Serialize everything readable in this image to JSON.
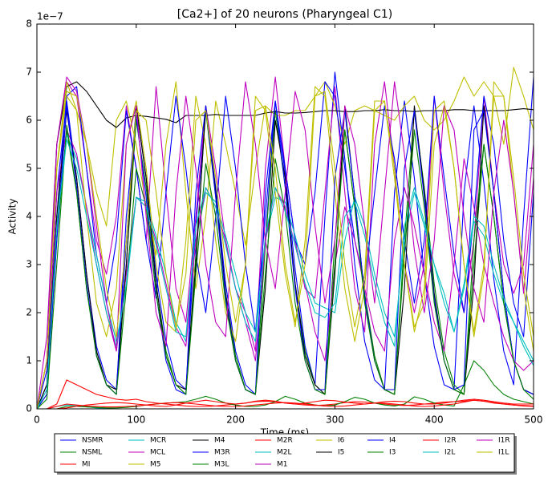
{
  "chart_data": {
    "type": "line",
    "title": "[Ca2+] of 20 neurons (Pharyngeal C1)",
    "x_label": "Time (ms)",
    "y_label": "Activity",
    "y_offset_label": "1e−7",
    "xlim": [
      0,
      500
    ],
    "xticks": [
      0,
      100,
      200,
      300,
      400,
      500
    ],
    "ylim": [
      0,
      8
    ],
    "yticks": [
      0,
      1,
      2,
      3,
      4,
      5,
      6,
      7,
      8
    ],
    "grid": false,
    "legend": "below",
    "x": [
      0,
      10,
      20,
      30,
      40,
      50,
      60,
      70,
      80,
      90,
      100,
      110,
      120,
      130,
      140,
      150,
      160,
      170,
      180,
      190,
      200,
      210,
      220,
      230,
      240,
      250,
      260,
      270,
      280,
      290,
      300,
      310,
      320,
      330,
      340,
      350,
      360,
      370,
      380,
      390,
      400,
      410,
      420,
      430,
      440,
      450,
      460,
      470,
      480,
      490,
      500
    ],
    "series": [
      {
        "name": "NSMR",
        "color": "#0000ff",
        "values": [
          0,
          0.8,
          4.5,
          6.4,
          4.8,
          2.8,
          1.3,
          0.6,
          0.4,
          3.5,
          6.3,
          4.8,
          2.8,
          1.4,
          0.6,
          0.4,
          3.8,
          6.2,
          4.6,
          2.6,
          1.2,
          0.5,
          0.3,
          3.5,
          6.4,
          4.9,
          2.9,
          1.3,
          0.5,
          4.0,
          7.0,
          5.2,
          3.0,
          1.4,
          0.6,
          0.4,
          4.5,
          6.4,
          4.8,
          2.8,
          1.3,
          0.5,
          0.4,
          4.5,
          6.3,
          4.7,
          2.7,
          1.2,
          0.5,
          4.0,
          6.9
        ]
      },
      {
        "name": "NSML",
        "color": "#008000",
        "values": [
          0,
          0.3,
          3.5,
          5.8,
          4.5,
          2.5,
          1.2,
          0.5,
          0.3,
          3,
          6,
          4.6,
          2.6,
          1.2,
          0.5,
          0.3,
          3.2,
          6.2,
          4.4,
          2.4,
          1.1,
          0.4,
          0.3,
          3.4,
          6.2,
          4.6,
          2.6,
          1.2,
          0.5,
          0.3,
          3.5,
          5.8,
          4.2,
          2.4,
          1.1,
          0.4,
          0.3,
          3.5,
          6.2,
          4.6,
          2.6,
          1.2,
          0.5,
          0.3,
          3.0,
          5.5,
          4.0,
          2.2,
          1.0,
          0.4,
          0.3
        ]
      },
      {
        "name": "MI",
        "color": "#ff0000",
        "values": [
          0,
          0,
          0.1,
          0.6,
          0.5,
          0.4,
          0.3,
          0.25,
          0.2,
          0.18,
          0.2,
          0.15,
          0.12,
          0.1,
          0.08,
          0.06,
          0.05,
          0.05,
          0.06,
          0.08,
          0.1,
          0.12,
          0.15,
          0.16,
          0.15,
          0.12,
          0.1,
          0.08,
          0.07,
          0.08,
          0.1,
          0.13,
          0.15,
          0.14,
          0.12,
          0.1,
          0.08,
          0.07,
          0.08,
          0.1,
          0.12,
          0.14,
          0.15,
          0.16,
          0.18,
          0.16,
          0.13,
          0.1,
          0.08,
          0.07,
          0.06
        ]
      },
      {
        "name": "MCR",
        "color": "#00bfbf",
        "values": [
          0,
          0,
          0.05,
          0.08,
          0.07,
          0.04,
          0.02,
          0.01,
          0,
          0,
          0,
          0,
          0,
          0,
          0,
          0,
          0,
          0,
          0,
          0,
          0,
          0,
          0,
          0,
          0,
          0,
          0,
          0,
          0,
          0,
          0,
          0,
          0,
          0,
          0,
          0,
          0,
          0,
          0,
          0,
          0,
          0,
          0,
          0,
          0,
          0,
          0,
          0,
          0,
          0,
          0
        ]
      },
      {
        "name": "MCL",
        "color": "#bf00bf",
        "values": [
          0,
          1.5,
          5.5,
          6.8,
          6.5,
          5,
          3.5,
          2.8,
          4,
          6.3,
          5,
          3.5,
          6.7,
          4.5,
          2.5,
          1.8,
          4,
          6.3,
          5,
          3.5,
          2.5,
          2,
          1.2,
          5,
          6.9,
          5,
          3.5,
          2.5,
          2.3,
          4.5,
          6.7,
          4.5,
          2.5,
          1.6,
          5.5,
          6.8,
          5,
          3,
          2,
          3,
          6.5,
          4.5,
          2.8,
          2,
          3.5,
          6.5,
          4.5,
          3,
          2.4,
          3,
          5.5
        ]
      },
      {
        "name": "M5",
        "color": "#bfbf00",
        "values": [
          0,
          1,
          5,
          6.5,
          6.2,
          5.5,
          4.5,
          3.8,
          6,
          6.4,
          5.5,
          4.2,
          3.2,
          5.5,
          6.8,
          4.5,
          2.5,
          4,
          6.4,
          5.5,
          4.5,
          3.4,
          5,
          6.3,
          6.1,
          6.1,
          6.2,
          6.2,
          6.5,
          6.8,
          6.3,
          5.5,
          6.2,
          6.3,
          6.2,
          6.1,
          6,
          6.3,
          6.5,
          6,
          5.8,
          6,
          6.4,
          6.9,
          6.5,
          6.8,
          6.5,
          5.5,
          7.1,
          6.5,
          5.8
        ]
      },
      {
        "name": "M4",
        "color": "#000000",
        "values": [
          0,
          1,
          5.5,
          6.7,
          6.8,
          6.6,
          6.3,
          6.0,
          5.85,
          6.05,
          6.1,
          6.08,
          6.05,
          6.02,
          5.95,
          6.1,
          6.1,
          6.1,
          6.12,
          6.1,
          6.1,
          6.1,
          6.1,
          6.15,
          6.18,
          6.15,
          6.15,
          6.16,
          6.18,
          6.2,
          6.2,
          6.18,
          6.18,
          6.2,
          6.2,
          6.22,
          6.2,
          6.2,
          6.18,
          6.2,
          6.2,
          6.2,
          6.22,
          6.22,
          6.2,
          6.2,
          6.2,
          6.2,
          6.22,
          6.24,
          6.22
        ]
      },
      {
        "name": "M3R",
        "color": "#0000ff",
        "values": [
          0,
          0.5,
          4,
          6.5,
          6.7,
          5,
          3.2,
          2.2,
          3.5,
          6.2,
          5,
          3.5,
          2.3,
          4.5,
          6.5,
          5,
          3.2,
          2,
          4,
          6.5,
          5,
          3,
          1.6,
          4,
          6.4,
          5,
          3.5,
          3,
          4.5,
          6.8,
          6.5,
          5,
          3.5,
          2.6,
          4.5,
          6.3,
          5.2,
          3.5,
          2.2,
          3.5,
          6.5,
          4.8,
          3.2,
          2,
          4,
          6.5,
          5.5,
          3.5,
          2.2,
          1.5,
          4.5
        ]
      },
      {
        "name": "M3L",
        "color": "#008000",
        "values": [
          0,
          0,
          0,
          0.05,
          0.05,
          0.04,
          0.03,
          0.02,
          0.02,
          0.03,
          0.05,
          0.08,
          0.1,
          0.12,
          0.13,
          0.15,
          0.2,
          0.26,
          0.2,
          0.12,
          0.08,
          0.05,
          0.05,
          0.08,
          0.15,
          0.26,
          0.2,
          0.12,
          0.08,
          0.06,
          0.08,
          0.15,
          0.24,
          0.2,
          0.12,
          0.08,
          0.06,
          0.1,
          0.25,
          0.2,
          0.12,
          0.08,
          0.06,
          0.5,
          1.0,
          0.8,
          0.5,
          0.3,
          0.2,
          0.15,
          0.1
        ]
      },
      {
        "name": "M2R",
        "color": "#ff0000",
        "values": [
          0,
          0,
          0,
          0.02,
          0.05,
          0.08,
          0.1,
          0.12,
          0.13,
          0.12,
          0.1,
          0.08,
          0.06,
          0.05,
          0.08,
          0.12,
          0.15,
          0.18,
          0.15,
          0.12,
          0.1,
          0.12,
          0.16,
          0.18,
          0.16,
          0.12,
          0.1,
          0.12,
          0.15,
          0.18,
          0.17,
          0.14,
          0.12,
          0.1,
          0.12,
          0.15,
          0.16,
          0.15,
          0.12,
          0.1,
          0.1,
          0.12,
          0.15,
          0.18,
          0.2,
          0.18,
          0.15,
          0.12,
          0.1,
          0.1,
          0.1
        ]
      },
      {
        "name": "M2L",
        "color": "#00bfbf",
        "values": [
          0,
          0.5,
          4,
          5.7,
          5.2,
          4.2,
          3.2,
          2.2,
          1.4,
          2.5,
          4.4,
          4.3,
          3.6,
          2.8,
          1.8,
          1.4,
          3.5,
          4.5,
          4.3,
          3.6,
          2.8,
          2,
          1.6,
          3.5,
          4.4,
          4.3,
          3.6,
          2.8,
          2.2,
          2.1,
          2.0,
          3.5,
          4.4,
          3.8,
          2.8,
          2,
          1.5,
          3.5,
          4.5,
          3.8,
          3.0,
          2.4,
          1.6,
          2.5,
          3.9,
          3.6,
          2.8,
          2.2,
          1.8,
          1.4,
          1.0
        ]
      },
      {
        "name": "M1",
        "color": "#bf00bf",
        "values": [
          0,
          0.5,
          4.5,
          5.8,
          5.3,
          4.2,
          3,
          2,
          1.2,
          2.8,
          4.4,
          4.2,
          3.5,
          2.6,
          1.7,
          1.3,
          3.5,
          4.6,
          4.2,
          3.5,
          2.5,
          1.8,
          1.0,
          3.5,
          4.6,
          4.2,
          3.4,
          2.6,
          1.6,
          1.0,
          3,
          4.2,
          3.5,
          2.5,
          1.6,
          1.2,
          3.5,
          4.6,
          3.8,
          2.8,
          1.8,
          1.2,
          3,
          5.2,
          4.2,
          3.0,
          2.2,
          1.5,
          1.0,
          0.8,
          1.0
        ]
      },
      {
        "name": "I6",
        "color": "#bfbf00",
        "values": [
          0,
          1,
          5,
          6.8,
          6.2,
          4,
          2.2,
          1.5,
          2.5,
          5.5,
          6.4,
          5,
          3,
          1.8,
          1.6,
          3.5,
          6.5,
          5.5,
          3.5,
          2,
          1.4,
          3.0,
          6.5,
          6.2,
          4.5,
          2.8,
          1.7,
          3.5,
          6.7,
          6.5,
          4.5,
          2.5,
          1.4,
          2.5,
          6.2,
          6.4,
          4.8,
          3,
          1.7,
          2.2,
          5.5,
          6.3,
          5,
          3,
          1.5,
          2.8,
          6.8,
          6.5,
          4.5,
          2.5,
          1.2
        ]
      },
      {
        "name": "I5",
        "color": "#000000",
        "values": [
          0,
          0.5,
          4,
          6.2,
          4.8,
          2.8,
          1.2,
          0.5,
          0.4,
          3,
          6.3,
          4.8,
          2.6,
          1.1,
          0.5,
          0.4,
          3,
          6.3,
          4.5,
          2.4,
          1.0,
          0.4,
          0.3,
          2.5,
          6.0,
          4.8,
          2.6,
          1.1,
          0.5,
          0.3,
          2.8,
          6.3,
          4.4,
          2.3,
          1.0,
          0.4,
          0.3,
          2.5,
          6.3,
          4.5,
          2.4,
          1.0,
          0.4,
          0.3,
          2.6,
          6.3,
          4.5,
          2.4,
          1.0,
          0.4,
          0.3
        ]
      },
      {
        "name": "I4",
        "color": "#0000ff",
        "values": [
          0,
          0.3,
          3.5,
          6.3,
          4.6,
          2.6,
          1.1,
          0.5,
          0.3,
          4,
          6.1,
          4.4,
          2.4,
          1,
          0.4,
          0.3,
          4.5,
          6.3,
          4.4,
          2.3,
          1,
          0.4,
          0.3,
          4.5,
          6.4,
          4.6,
          2.5,
          1,
          0.4,
          0.4,
          4.8,
          6.2,
          4.4,
          2.3,
          1,
          0.4,
          0.4,
          5,
          6.2,
          4.4,
          2.3,
          1.0,
          0.4,
          0.5,
          5.8,
          6.2,
          4.5,
          2.4,
          1,
          0.4,
          0.3
        ]
      },
      {
        "name": "I3",
        "color": "#008000",
        "values": [
          0,
          0.2,
          3.0,
          5.9,
          4.5,
          2.5,
          1.1,
          0.5,
          0.3,
          2.5,
          5.0,
          4.2,
          2.4,
          1.1,
          0.5,
          0.3,
          2.8,
          5.1,
          4.0,
          2.2,
          1.0,
          0.4,
          0.3,
          2.8,
          5.2,
          4.1,
          2.2,
          1.0,
          0.4,
          0.3,
          3.0,
          5.8,
          4.2,
          2.2,
          1.0,
          0.4,
          0.3,
          3.2,
          5.8,
          4.2,
          2.2,
          1.0,
          0.4,
          0.3,
          3.5,
          5.5,
          4.0,
          2.2,
          1.0,
          0.4,
          0.2
        ]
      },
      {
        "name": "I2R",
        "color": "#ff0000",
        "values": [
          0,
          0,
          0.05,
          0.1,
          0.08,
          0.06,
          0.05,
          0.04,
          0.04,
          0.05,
          0.06,
          0.08,
          0.1,
          0.12,
          0.13,
          0.12,
          0.1,
          0.08,
          0.06,
          0.05,
          0.05,
          0.06,
          0.08,
          0.1,
          0.12,
          0.13,
          0.12,
          0.1,
          0.08,
          0.06,
          0.05,
          0.06,
          0.08,
          0.1,
          0.12,
          0.12,
          0.1,
          0.08,
          0.06,
          0.05,
          0.06,
          0.08,
          0.1,
          0.14,
          0.18,
          0.16,
          0.12,
          0.1,
          0.08,
          0.06,
          0.05
        ]
      },
      {
        "name": "I2L",
        "color": "#00bfbf",
        "values": [
          0,
          0.4,
          3.8,
          5.6,
          5.0,
          4.0,
          3.0,
          2.0,
          1.3,
          2.6,
          4.4,
          4.2,
          3.4,
          2.5,
          1.6,
          1.5,
          3.8,
          4.6,
          4.2,
          3.4,
          2.5,
          1.8,
          1.4,
          3.6,
          4.6,
          4.1,
          3.4,
          2.6,
          2.0,
          1.9,
          2.2,
          4.0,
          4.3,
          3.6,
          2.6,
          1.8,
          1.3,
          3.8,
          4.6,
          3.9,
          3.0,
          2.2,
          1.6,
          2.6,
          4.0,
          3.8,
          3.0,
          2.3,
          1.8,
          1.3,
          0.9
        ]
      },
      {
        "name": "I1R",
        "color": "#bf00bf",
        "values": [
          0,
          1,
          5.5,
          6.9,
          6.6,
          5.5,
          3.8,
          2.2,
          1.2,
          5.5,
          6.3,
          4,
          2,
          1.3,
          4.5,
          6.5,
          5,
          3,
          1.8,
          1.5,
          4.5,
          6.8,
          5.5,
          3.5,
          2.5,
          4.5,
          6.6,
          5.8,
          3.8,
          2.2,
          3.5,
          6.3,
          5.5,
          3.8,
          2.2,
          4.5,
          6.8,
          5.3,
          3.3,
          2.0,
          3.5,
          6.3,
          5.8,
          4.0,
          2.5,
          1.8,
          4.5,
          6.0,
          4.5,
          2.4,
          4.8
        ]
      },
      {
        "name": "I1L",
        "color": "#bfbf00",
        "values": [
          0,
          1,
          5,
          6.6,
          6.5,
          5.5,
          4,
          2.5,
          1.5,
          3.5,
          6.2,
          6.0,
          4.5,
          2.8,
          1.7,
          2.8,
          6.0,
          6.2,
          4.8,
          3,
          1.8,
          3.0,
          6.2,
          6.3,
          5,
          3,
          1.8,
          3,
          6.5,
          6.6,
          5.0,
          3.0,
          1.7,
          2.8,
          6.4,
          6.4,
          5.0,
          3.0,
          1.6,
          2.5,
          6.2,
          6.4,
          5.0,
          3.0,
          1.6,
          3.0,
          6.5,
          6.5,
          4.8,
          2.8,
          1.5
        ]
      }
    ]
  }
}
